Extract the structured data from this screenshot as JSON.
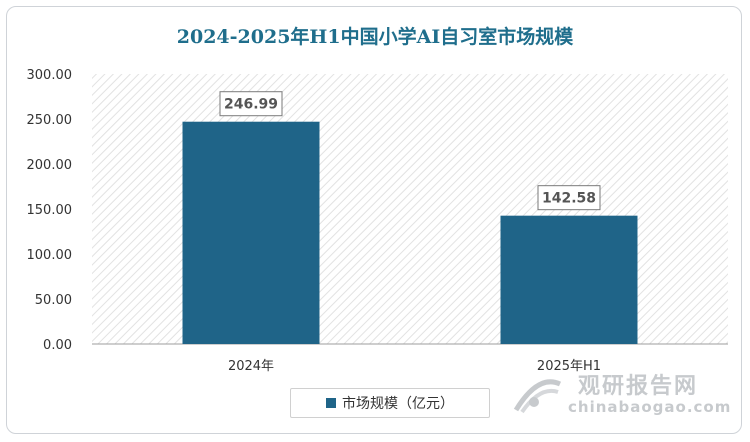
{
  "chart_data": {
    "type": "bar",
    "title": "2024-2025年H1中国小学AI自习室市场规模",
    "categories": [
      "2024年",
      "2025年H1"
    ],
    "series": [
      {
        "name": "市场规模（亿元）",
        "values": [
          246.99,
          142.58
        ]
      }
    ],
    "data_labels": [
      "246.99",
      "142.58"
    ],
    "y_ticks": [
      "0.00",
      "50.00",
      "100.00",
      "150.00",
      "200.00",
      "250.00",
      "300.00"
    ],
    "ylim": [
      0,
      300
    ],
    "legend_position": "bottom",
    "bar_color": "#1f6488",
    "grid": false
  },
  "watermark": {
    "name": "观研报告网",
    "url": "chinabaogao.com"
  }
}
